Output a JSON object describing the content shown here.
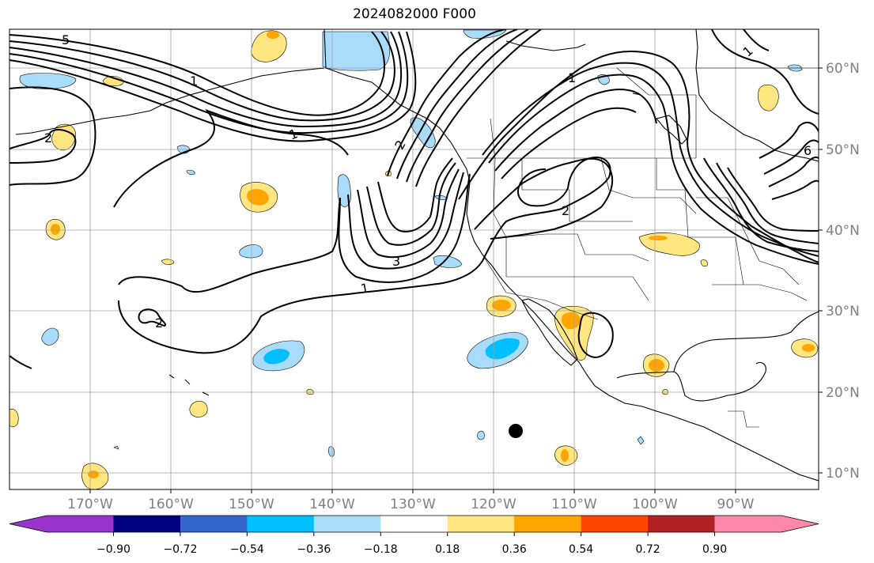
{
  "title": "2024082000 F000",
  "lon_labels": [
    "170°W",
    "160°W",
    "150°W",
    "140°W",
    "130°W",
    "120°W",
    "110°W",
    "100°W",
    "90°W"
  ],
  "lat_labels": [
    "60°N",
    "50°N",
    "40°N",
    "30°N",
    "20°N",
    "10°N"
  ],
  "colorbar": {
    "colors": [
      "#9933cc",
      "#000080",
      "#3366cc",
      "#00bfff",
      "#a9dcfb",
      "#ffffff",
      "#ffe680",
      "#ffa500",
      "#ff4500",
      "#b22222",
      "#ff88aa"
    ],
    "labels": [
      "−0.90",
      "−0.72",
      "−0.54",
      "−0.36",
      "−0.18",
      "0.18",
      "0.36",
      "0.54",
      "0.72",
      "0.90"
    ]
  },
  "contour_labels": [
    "5",
    "1",
    "2",
    "1",
    "2",
    "3",
    "1",
    "2",
    "1",
    "2",
    "6",
    "1"
  ],
  "colors": {
    "fill_pos_light": "#ffe680",
    "fill_pos_mid": "#ffa500",
    "fill_neg_light": "#a9dcfb",
    "fill_neg_mid": "#00bfff",
    "grid": "#a0a0a0"
  }
}
